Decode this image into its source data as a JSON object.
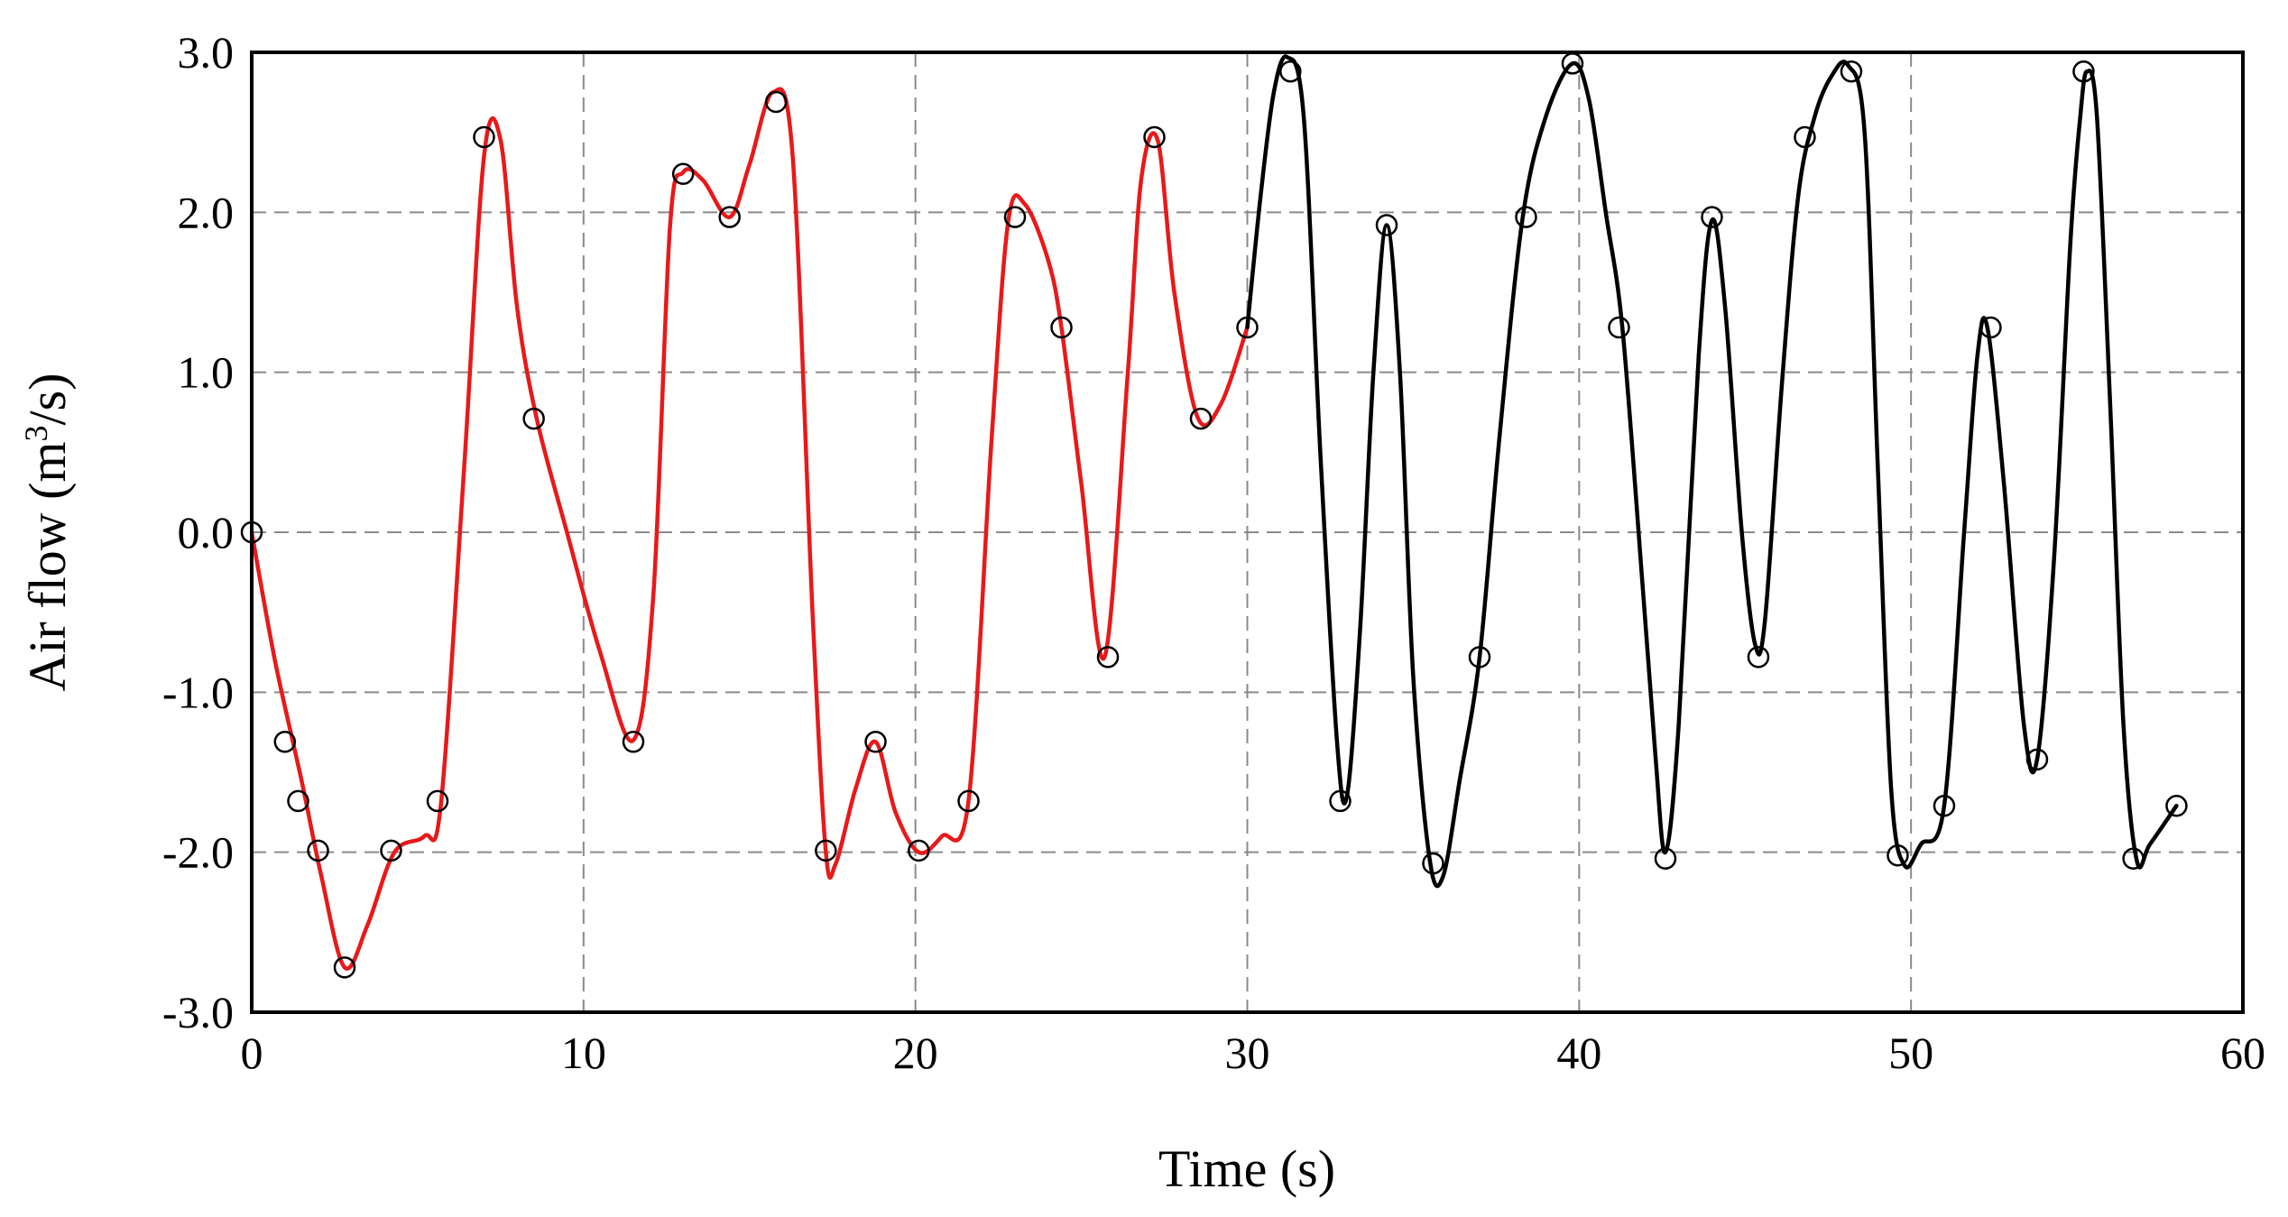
{
  "chart_data": {
    "type": "line",
    "title": "",
    "xlabel": "Time (s)",
    "ylabel_main": "Air flow (m",
    "ylabel_sup": "3",
    "ylabel_end": "/s)",
    "xlim": [
      0,
      60
    ],
    "ylim": [
      -3,
      3
    ],
    "grid": true,
    "x_ticks": [
      0,
      10,
      20,
      30,
      40,
      50,
      60
    ],
    "y_ticks": [
      -3,
      -2,
      -1,
      0,
      1,
      2,
      3
    ],
    "x_tick_labels": [
      "0",
      "10",
      "20",
      "30",
      "40",
      "50",
      "60"
    ],
    "y_tick_labels": [
      "-3.0",
      "-2.0",
      "-1.0",
      "0.0",
      "1.0",
      "2.0",
      "3.0"
    ],
    "colors": {
      "series_1": "#e8191a",
      "series_2": "#000000",
      "markers": "#000000",
      "grid": "#8a8a8a"
    },
    "series": [
      {
        "color": "#e8191a",
        "curve": [
          [
            0,
            0
          ],
          [
            0.7,
            -0.8
          ],
          [
            1.5,
            -1.55
          ],
          [
            2.1,
            -2.15
          ],
          [
            2.8,
            -2.72
          ],
          [
            3.5,
            -2.45
          ],
          [
            4.3,
            -2.0
          ],
          [
            5.2,
            -1.9
          ],
          [
            5.7,
            -1.7
          ],
          [
            6.4,
            0.4
          ],
          [
            7.0,
            2.35
          ],
          [
            7.5,
            2.45
          ],
          [
            8.0,
            1.4
          ],
          [
            8.6,
            0.7
          ],
          [
            9.5,
            0.0
          ],
          [
            10.5,
            -0.75
          ],
          [
            11.5,
            -1.3
          ],
          [
            12.1,
            -0.4
          ],
          [
            12.6,
            1.9
          ],
          [
            13.0,
            2.25
          ],
          [
            13.6,
            2.2
          ],
          [
            14.4,
            1.97
          ],
          [
            15.0,
            2.3
          ],
          [
            15.7,
            2.75
          ],
          [
            16.3,
            2.35
          ],
          [
            16.9,
            -0.5
          ],
          [
            17.3,
            -2.0
          ],
          [
            17.6,
            -2.07
          ],
          [
            18.2,
            -1.6
          ],
          [
            18.8,
            -1.31
          ],
          [
            19.4,
            -1.75
          ],
          [
            20.1,
            -2.0
          ],
          [
            20.8,
            -1.9
          ],
          [
            21.6,
            -1.68
          ],
          [
            22.3,
            0.6
          ],
          [
            22.8,
            1.95
          ],
          [
            23.3,
            2.05
          ],
          [
            24.0,
            1.7
          ],
          [
            24.4,
            1.28
          ],
          [
            25.0,
            0.3
          ],
          [
            25.7,
            -0.78
          ],
          [
            26.4,
            1.0
          ],
          [
            26.8,
            2.2
          ],
          [
            27.3,
            2.45
          ],
          [
            27.8,
            1.5
          ],
          [
            28.5,
            0.72
          ],
          [
            29.2,
            0.8
          ],
          [
            30.0,
            1.28
          ]
        ],
        "markers": [
          [
            0,
            0
          ],
          [
            1,
            -1.31
          ],
          [
            1.4,
            -1.68
          ],
          [
            2,
            -1.99
          ],
          [
            2.8,
            -2.72
          ],
          [
            4.2,
            -1.99
          ],
          [
            5.6,
            -1.68
          ],
          [
            7,
            2.47
          ],
          [
            8.5,
            0.71
          ],
          [
            11.5,
            -1.31
          ],
          [
            13,
            2.24
          ],
          [
            14.4,
            1.97
          ],
          [
            15.8,
            2.69
          ],
          [
            17.3,
            -1.99
          ],
          [
            18.8,
            -1.31
          ],
          [
            20.1,
            -1.99
          ],
          [
            21.6,
            -1.68
          ],
          [
            23,
            1.97
          ],
          [
            24.4,
            1.28
          ],
          [
            25.8,
            -0.78
          ],
          [
            27.2,
            2.47
          ],
          [
            28.6,
            0.71
          ],
          [
            30,
            1.28
          ]
        ]
      },
      {
        "color": "#000000",
        "curve": [
          [
            30.0,
            1.28
          ],
          [
            30.4,
            2.1
          ],
          [
            30.8,
            2.75
          ],
          [
            31.2,
            2.97
          ],
          [
            31.7,
            2.6
          ],
          [
            32.2,
            0.5
          ],
          [
            32.7,
            -1.3
          ],
          [
            33.0,
            -1.65
          ],
          [
            33.4,
            -0.6
          ],
          [
            33.8,
            1.0
          ],
          [
            34.2,
            1.92
          ],
          [
            34.6,
            1.0
          ],
          [
            35.0,
            -0.9
          ],
          [
            35.5,
            -2.05
          ],
          [
            35.9,
            -2.15
          ],
          [
            36.4,
            -1.55
          ],
          [
            37.0,
            -0.78
          ],
          [
            37.6,
            0.6
          ],
          [
            38.3,
            1.97
          ],
          [
            39.0,
            2.6
          ],
          [
            39.8,
            2.93
          ],
          [
            40.3,
            2.7
          ],
          [
            40.8,
            2.0
          ],
          [
            41.3,
            1.28
          ],
          [
            41.9,
            -0.3
          ],
          [
            42.3,
            -1.4
          ],
          [
            42.6,
            -2.0
          ],
          [
            43.0,
            -1.2
          ],
          [
            43.6,
            1.1
          ],
          [
            44.0,
            1.95
          ],
          [
            44.4,
            1.4
          ],
          [
            44.9,
            0.0
          ],
          [
            45.3,
            -0.7
          ],
          [
            45.6,
            -0.55
          ],
          [
            46.1,
            0.9
          ],
          [
            46.6,
            2.1
          ],
          [
            47.1,
            2.6
          ],
          [
            47.6,
            2.85
          ],
          [
            48.1,
            2.92
          ],
          [
            48.6,
            2.5
          ],
          [
            49.0,
            0.4
          ],
          [
            49.4,
            -1.6
          ],
          [
            49.8,
            -2.08
          ],
          [
            50.3,
            -1.95
          ],
          [
            51.0,
            -1.71
          ],
          [
            51.6,
            0.0
          ],
          [
            52.0,
            1.1
          ],
          [
            52.3,
            1.28
          ],
          [
            52.8,
            0.3
          ],
          [
            53.4,
            -1.2
          ],
          [
            53.8,
            -1.42
          ],
          [
            54.3,
            -0.2
          ],
          [
            54.8,
            1.8
          ],
          [
            55.1,
            2.6
          ],
          [
            55.3,
            2.88
          ],
          [
            55.6,
            2.6
          ],
          [
            56.0,
            0.8
          ],
          [
            56.4,
            -1.2
          ],
          [
            56.8,
            -2.05
          ],
          [
            57.2,
            -1.95
          ],
          [
            58.0,
            -1.71
          ]
        ],
        "markers": [
          [
            31.3,
            2.88
          ],
          [
            32.8,
            -1.68
          ],
          [
            34.2,
            1.92
          ],
          [
            35.6,
            -2.07
          ],
          [
            37,
            -0.78
          ],
          [
            38.4,
            1.97
          ],
          [
            39.8,
            2.93
          ],
          [
            41.2,
            1.28
          ],
          [
            42.6,
            -2.04
          ],
          [
            44,
            1.97
          ],
          [
            45.4,
            -0.78
          ],
          [
            46.8,
            2.47
          ],
          [
            48.2,
            2.88
          ],
          [
            49.6,
            -2.02
          ],
          [
            51,
            -1.71
          ],
          [
            52.4,
            1.28
          ],
          [
            53.8,
            -1.42
          ],
          [
            55.2,
            2.88
          ],
          [
            56.7,
            -2.04
          ],
          [
            58,
            -1.71
          ]
        ]
      }
    ]
  }
}
